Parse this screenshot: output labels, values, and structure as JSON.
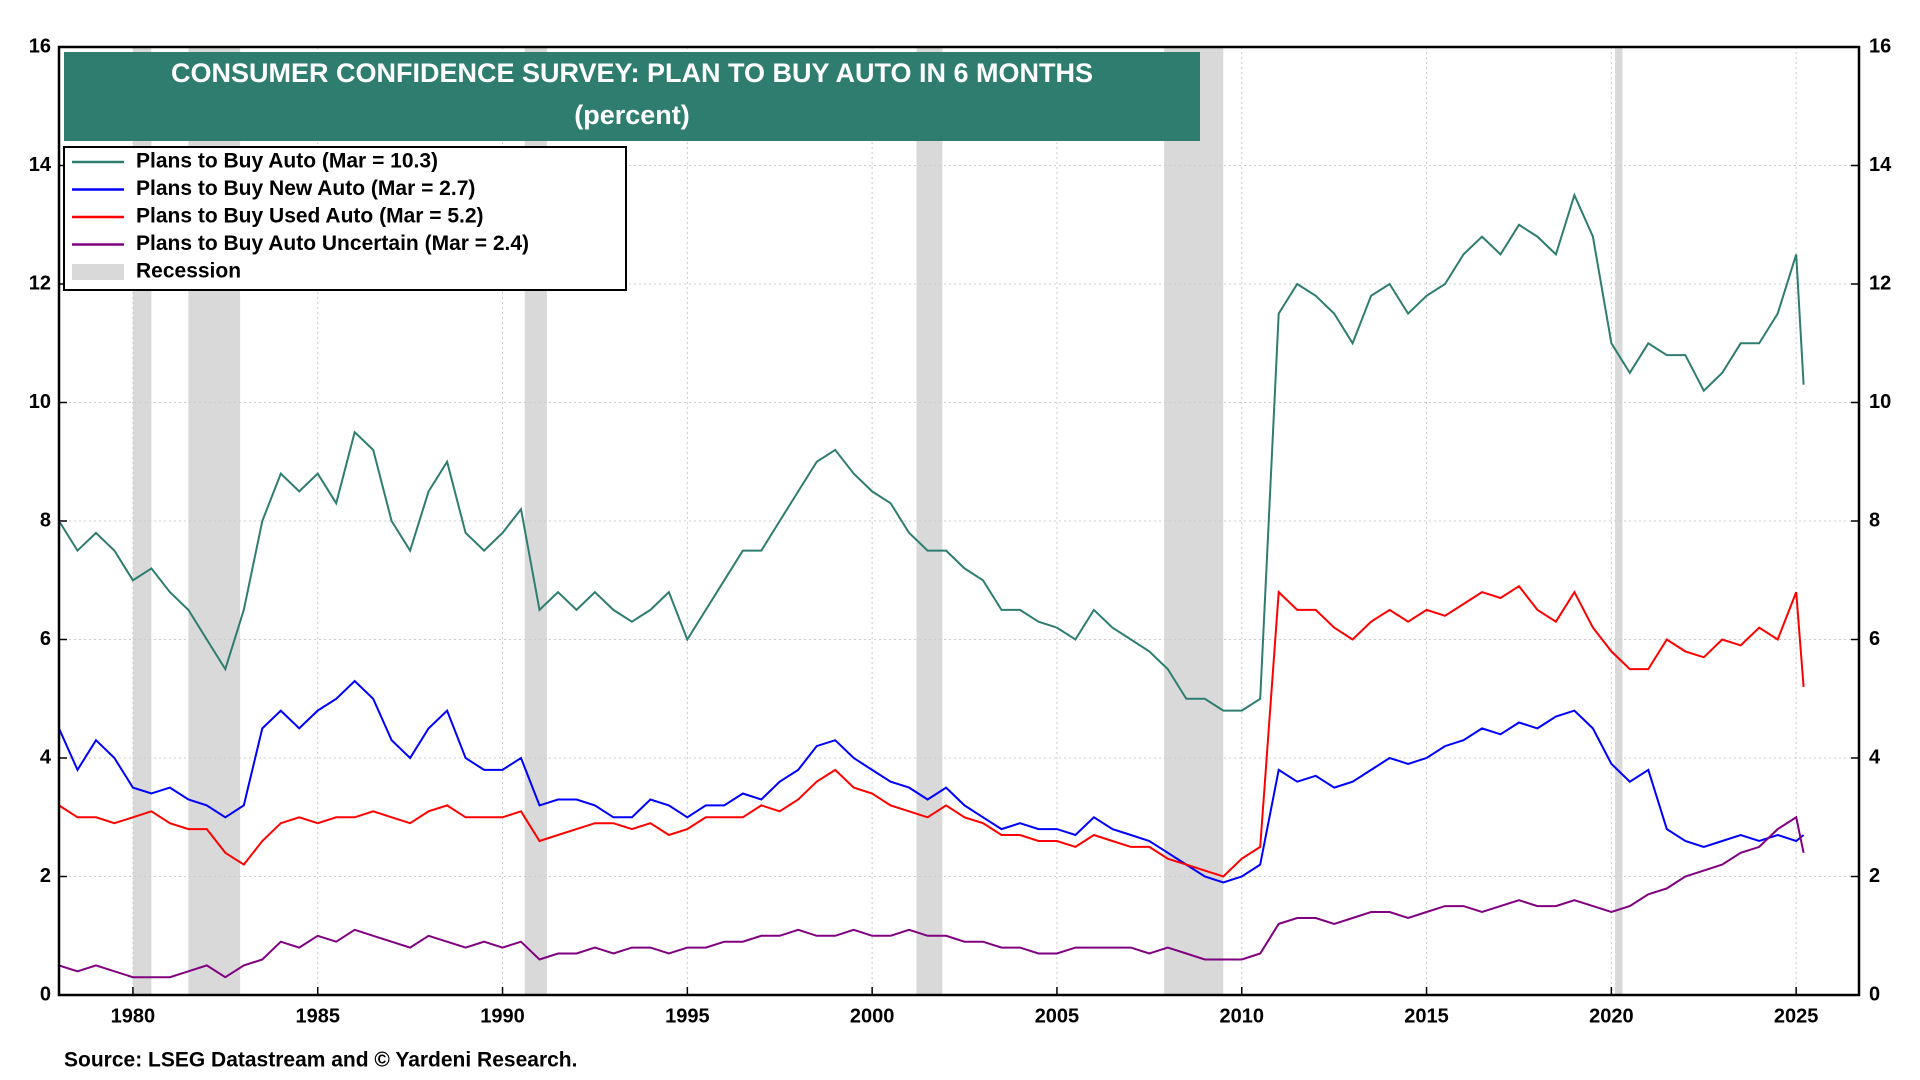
{
  "chart_data": {
    "type": "line",
    "title": "CONSUMER CONFIDENCE SURVEY: PLAN TO BUY AUTO IN 6 MONTHS",
    "subtitle": "(percent)",
    "source": "Source: LSEG Datastream and © Yardeni Research.",
    "x": [
      1978,
      1978.5,
      1979,
      1979.5,
      1980,
      1980.5,
      1981,
      1981.5,
      1982,
      1982.5,
      1983,
      1983.5,
      1984,
      1984.5,
      1985,
      1985.5,
      1986,
      1986.5,
      1987,
      1987.5,
      1988,
      1988.5,
      1989,
      1989.5,
      1990,
      1990.5,
      1991,
      1991.5,
      1992,
      1992.5,
      1993,
      1993.5,
      1994,
      1994.5,
      1995,
      1995.5,
      1996,
      1996.5,
      1997,
      1997.5,
      1998,
      1998.5,
      1999,
      1999.5,
      2000,
      2000.5,
      2001,
      2001.5,
      2002,
      2002.5,
      2003,
      2003.5,
      2004,
      2004.5,
      2005,
      2005.5,
      2006,
      2006.5,
      2007,
      2007.5,
      2008,
      2008.5,
      2009,
      2009.5,
      2010,
      2010.5,
      2011,
      2011.5,
      2012,
      2012.5,
      2013,
      2013.5,
      2014,
      2014.5,
      2015,
      2015.5,
      2016,
      2016.5,
      2017,
      2017.5,
      2018,
      2018.5,
      2019,
      2019.5,
      2020,
      2020.5,
      2021,
      2021.5,
      2022,
      2022.5,
      2023,
      2023.5,
      2024,
      2024.5,
      2025,
      2025.2
    ],
    "series": [
      {
        "name": "Plans to Buy Auto (Mar = 10.3)",
        "color": "#2e7d6f",
        "values": [
          8.0,
          7.5,
          7.8,
          7.5,
          7.0,
          7.2,
          6.8,
          6.5,
          6.0,
          5.5,
          6.5,
          8.0,
          8.8,
          8.5,
          8.8,
          8.3,
          9.5,
          9.2,
          8.0,
          7.5,
          8.5,
          9.0,
          7.8,
          7.5,
          7.8,
          8.2,
          6.5,
          6.8,
          6.5,
          6.8,
          6.5,
          6.3,
          6.5,
          6.8,
          6.0,
          6.5,
          7.0,
          7.5,
          7.5,
          8.0,
          8.5,
          9.0,
          9.2,
          8.8,
          8.5,
          8.3,
          7.8,
          7.5,
          7.5,
          7.2,
          7.0,
          6.5,
          6.5,
          6.3,
          6.2,
          6.0,
          6.5,
          6.2,
          6.0,
          5.8,
          5.5,
          5.0,
          5.0,
          4.8,
          4.8,
          5.0,
          11.5,
          12.0,
          11.8,
          11.5,
          11.0,
          11.8,
          12.0,
          11.5,
          11.8,
          12.0,
          12.5,
          12.8,
          12.5,
          13.0,
          12.8,
          12.5,
          13.5,
          12.8,
          11.0,
          10.5,
          11.0,
          10.8,
          10.8,
          10.2,
          10.5,
          11.0,
          11.0,
          11.5,
          12.5,
          10.3
        ]
      },
      {
        "name": "Plans to Buy New Auto (Mar = 2.7)",
        "color": "#0000ff",
        "values": [
          4.5,
          3.8,
          4.3,
          4.0,
          3.5,
          3.4,
          3.5,
          3.3,
          3.2,
          3.0,
          3.2,
          4.5,
          4.8,
          4.5,
          4.8,
          5.0,
          5.3,
          5.0,
          4.3,
          4.0,
          4.5,
          4.8,
          4.0,
          3.8,
          3.8,
          4.0,
          3.2,
          3.3,
          3.3,
          3.2,
          3.0,
          3.0,
          3.3,
          3.2,
          3.0,
          3.2,
          3.2,
          3.4,
          3.3,
          3.6,
          3.8,
          4.2,
          4.3,
          4.0,
          3.8,
          3.6,
          3.5,
          3.3,
          3.5,
          3.2,
          3.0,
          2.8,
          2.9,
          2.8,
          2.8,
          2.7,
          3.0,
          2.8,
          2.7,
          2.6,
          2.4,
          2.2,
          2.0,
          1.9,
          2.0,
          2.2,
          3.8,
          3.6,
          3.7,
          3.5,
          3.6,
          3.8,
          4.0,
          3.9,
          4.0,
          4.2,
          4.3,
          4.5,
          4.4,
          4.6,
          4.5,
          4.7,
          4.8,
          4.5,
          3.9,
          3.6,
          3.8,
          2.8,
          2.6,
          2.5,
          2.6,
          2.7,
          2.6,
          2.7,
          2.6,
          2.7
        ]
      },
      {
        "name": "Plans to Buy Used Auto (Mar = 5.2)",
        "color": "#ff0000",
        "values": [
          3.2,
          3.0,
          3.0,
          2.9,
          3.0,
          3.1,
          2.9,
          2.8,
          2.8,
          2.4,
          2.2,
          2.6,
          2.9,
          3.0,
          2.9,
          3.0,
          3.0,
          3.1,
          3.0,
          2.9,
          3.1,
          3.2,
          3.0,
          3.0,
          3.0,
          3.1,
          2.6,
          2.7,
          2.8,
          2.9,
          2.9,
          2.8,
          2.9,
          2.7,
          2.8,
          3.0,
          3.0,
          3.0,
          3.2,
          3.1,
          3.3,
          3.6,
          3.8,
          3.5,
          3.4,
          3.2,
          3.1,
          3.0,
          3.2,
          3.0,
          2.9,
          2.7,
          2.7,
          2.6,
          2.6,
          2.5,
          2.7,
          2.6,
          2.5,
          2.5,
          2.3,
          2.2,
          2.1,
          2.0,
          2.3,
          2.5,
          6.8,
          6.5,
          6.5,
          6.2,
          6.0,
          6.3,
          6.5,
          6.3,
          6.5,
          6.4,
          6.6,
          6.8,
          6.7,
          6.9,
          6.5,
          6.3,
          6.8,
          6.2,
          5.8,
          5.5,
          5.5,
          6.0,
          5.8,
          5.7,
          6.0,
          5.9,
          6.2,
          6.0,
          6.8,
          5.2
        ]
      },
      {
        "name": "Plans to Buy Auto Uncertain (Mar = 2.4)",
        "color": "#800080",
        "values": [
          0.5,
          0.4,
          0.5,
          0.4,
          0.3,
          0.3,
          0.3,
          0.4,
          0.5,
          0.3,
          0.5,
          0.6,
          0.9,
          0.8,
          1.0,
          0.9,
          1.1,
          1.0,
          0.9,
          0.8,
          1.0,
          0.9,
          0.8,
          0.9,
          0.8,
          0.9,
          0.6,
          0.7,
          0.7,
          0.8,
          0.7,
          0.8,
          0.8,
          0.7,
          0.8,
          0.8,
          0.9,
          0.9,
          1.0,
          1.0,
          1.1,
          1.0,
          1.0,
          1.1,
          1.0,
          1.0,
          1.1,
          1.0,
          1.0,
          0.9,
          0.9,
          0.8,
          0.8,
          0.7,
          0.7,
          0.8,
          0.8,
          0.8,
          0.8,
          0.7,
          0.8,
          0.7,
          0.6,
          0.6,
          0.6,
          0.7,
          1.2,
          1.3,
          1.3,
          1.2,
          1.3,
          1.4,
          1.4,
          1.3,
          1.4,
          1.5,
          1.5,
          1.4,
          1.5,
          1.6,
          1.5,
          1.5,
          1.6,
          1.5,
          1.4,
          1.5,
          1.7,
          1.8,
          2.0,
          2.1,
          2.2,
          2.4,
          2.5,
          2.8,
          3.0,
          2.4
        ]
      }
    ],
    "recessions": {
      "name": "Recession",
      "color": "#d9d9d9",
      "ranges": [
        [
          1980.0,
          1980.5
        ],
        [
          1981.5,
          1982.9
        ],
        [
          1990.6,
          1991.2
        ],
        [
          2001.2,
          2001.9
        ],
        [
          2007.9,
          2009.5
        ],
        [
          2020.1,
          2020.3
        ]
      ]
    },
    "xlim": [
      1978.0,
      2026.7
    ],
    "xticks": [
      1980,
      1985,
      1990,
      1995,
      2000,
      2005,
      2010,
      2015,
      2020,
      2025
    ],
    "ylim": [
      0,
      16
    ],
    "yticks": [
      0,
      2,
      4,
      6,
      8,
      10,
      12,
      14,
      16
    ],
    "y2lim": [
      0,
      16
    ],
    "y2ticks": [
      0,
      2,
      4,
      6,
      8,
      10,
      12,
      14,
      16
    ],
    "grid": true,
    "legend": "upper left",
    "title_color": "#2e7d6f"
  }
}
